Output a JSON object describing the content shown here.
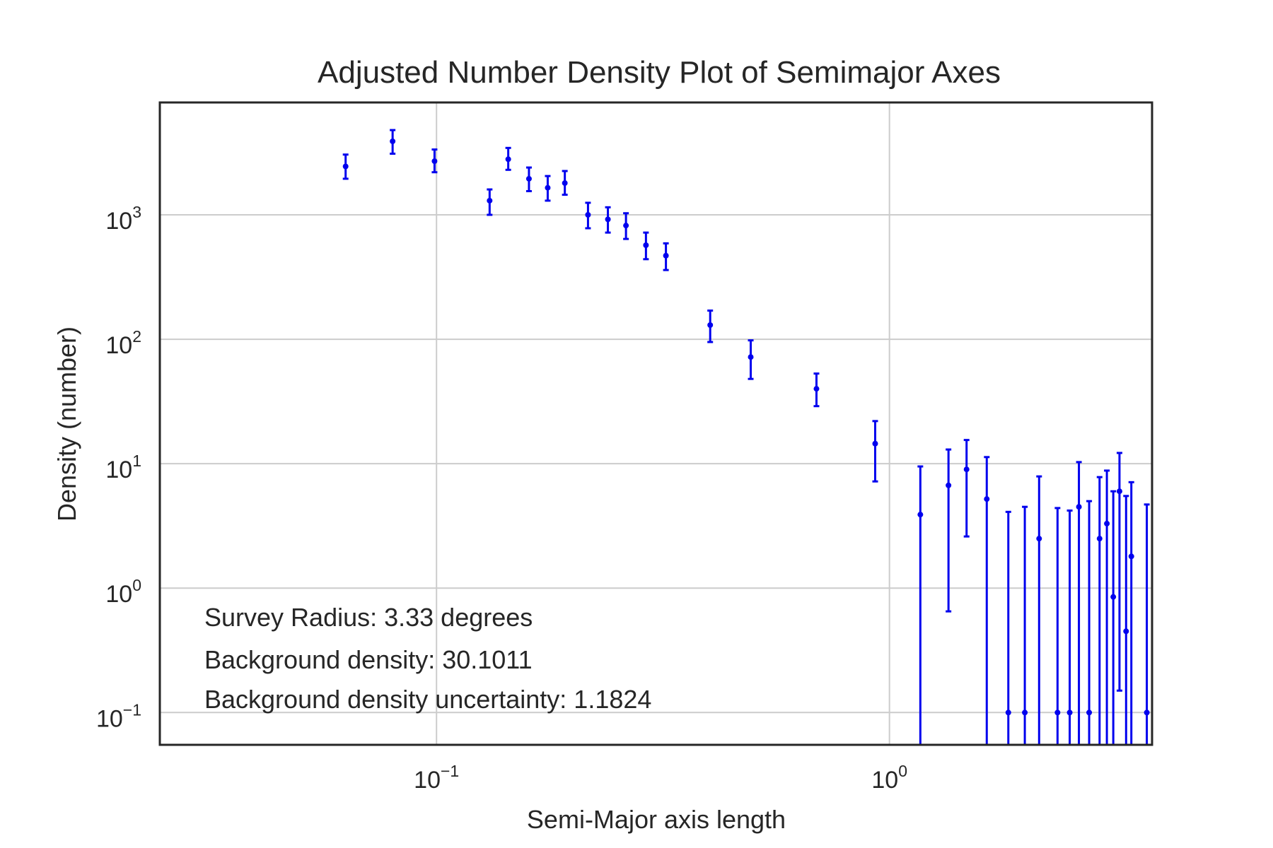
{
  "chart_data": {
    "type": "scatter",
    "title": "Adjusted Number Density Plot of Semimajor Axes",
    "xlabel": "Semi-Major axis length",
    "ylabel": "Density (number)",
    "xscale": "log",
    "yscale": "log",
    "xlim": [
      0.0245,
      3.8
    ],
    "ylim": [
      0.055,
      8000
    ],
    "grid": true,
    "marker_color": "#0000ee",
    "x_ticks": [
      {
        "value": 0.1,
        "base": "10",
        "exp": "−1"
      },
      {
        "value": 1,
        "base": "10",
        "exp": "0"
      }
    ],
    "y_ticks": [
      {
        "value": 0.1,
        "base": "10",
        "exp": "−1"
      },
      {
        "value": 1,
        "base": "10",
        "exp": "0"
      },
      {
        "value": 10,
        "base": "10",
        "exp": "1"
      },
      {
        "value": 100,
        "base": "10",
        "exp": "2"
      },
      {
        "value": 1000,
        "base": "10",
        "exp": "3"
      }
    ],
    "annotations": [
      "Survey Radius: 3.33 degrees",
      "Background density: 30.1011",
      "Background density uncertainty: 1.1824"
    ],
    "series": [
      {
        "points": [
          {
            "x": 0.063,
            "y": 2450,
            "ylow": 1950,
            "yhigh": 3050
          },
          {
            "x": 0.08,
            "y": 3900,
            "ylow": 3100,
            "yhigh": 4800
          },
          {
            "x": 0.099,
            "y": 2700,
            "ylow": 2200,
            "yhigh": 3350
          },
          {
            "x": 0.131,
            "y": 1300,
            "ylow": 1000,
            "yhigh": 1600
          },
          {
            "x": 0.144,
            "y": 2800,
            "ylow": 2300,
            "yhigh": 3450
          },
          {
            "x": 0.16,
            "y": 1950,
            "ylow": 1550,
            "yhigh": 2400
          },
          {
            "x": 0.176,
            "y": 1650,
            "ylow": 1300,
            "yhigh": 2050
          },
          {
            "x": 0.192,
            "y": 1800,
            "ylow": 1450,
            "yhigh": 2250
          },
          {
            "x": 0.216,
            "y": 1000,
            "ylow": 780,
            "yhigh": 1250
          },
          {
            "x": 0.239,
            "y": 920,
            "ylow": 720,
            "yhigh": 1150
          },
          {
            "x": 0.262,
            "y": 820,
            "ylow": 640,
            "yhigh": 1030
          },
          {
            "x": 0.29,
            "y": 570,
            "ylow": 440,
            "yhigh": 720
          },
          {
            "x": 0.321,
            "y": 470,
            "ylow": 360,
            "yhigh": 590
          },
          {
            "x": 0.402,
            "y": 130,
            "ylow": 95,
            "yhigh": 170
          },
          {
            "x": 0.494,
            "y": 72,
            "ylow": 48,
            "yhigh": 98
          },
          {
            "x": 0.69,
            "y": 40,
            "ylow": 29,
            "yhigh": 53
          },
          {
            "x": 0.93,
            "y": 14.5,
            "ylow": 7.2,
            "yhigh": 22
          },
          {
            "x": 1.17,
            "y": 3.9,
            "ylow": 0.01,
            "yhigh": 9.5
          },
          {
            "x": 1.35,
            "y": 6.7,
            "ylow": 0.65,
            "yhigh": 13
          },
          {
            "x": 1.48,
            "y": 9.0,
            "ylow": 2.6,
            "yhigh": 15.5
          },
          {
            "x": 1.64,
            "y": 5.2,
            "ylow": 0.01,
            "yhigh": 11.3
          },
          {
            "x": 1.83,
            "y": 0.1,
            "ylow": 0.01,
            "yhigh": 4.1
          },
          {
            "x": 1.99,
            "y": 0.1,
            "ylow": 0.01,
            "yhigh": 4.5
          },
          {
            "x": 2.14,
            "y": 2.5,
            "ylow": 0.01,
            "yhigh": 7.9
          },
          {
            "x": 2.35,
            "y": 0.1,
            "ylow": 0.01,
            "yhigh": 4.4
          },
          {
            "x": 2.5,
            "y": 0.1,
            "ylow": 0.01,
            "yhigh": 4.2
          },
          {
            "x": 2.62,
            "y": 4.5,
            "ylow": 0.01,
            "yhigh": 10.3
          },
          {
            "x": 2.76,
            "y": 0.1,
            "ylow": 0.01,
            "yhigh": 5.0
          },
          {
            "x": 2.91,
            "y": 2.5,
            "ylow": 0.01,
            "yhigh": 7.8
          },
          {
            "x": 3.02,
            "y": 3.3,
            "ylow": 0.01,
            "yhigh": 8.8
          },
          {
            "x": 3.12,
            "y": 0.85,
            "ylow": 0.01,
            "yhigh": 6.0
          },
          {
            "x": 3.22,
            "y": 6.0,
            "ylow": 0.15,
            "yhigh": 12.2
          },
          {
            "x": 3.33,
            "y": 0.45,
            "ylow": 0.01,
            "yhigh": 5.5
          },
          {
            "x": 3.42,
            "y": 1.8,
            "ylow": 0.01,
            "yhigh": 7.1
          },
          {
            "x": 3.7,
            "y": 0.1,
            "ylow": 0.01,
            "yhigh": 4.7
          }
        ]
      }
    ]
  }
}
